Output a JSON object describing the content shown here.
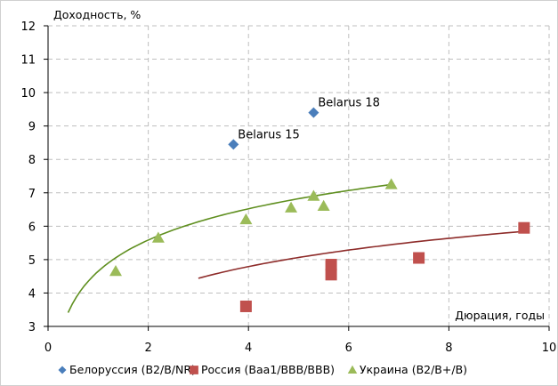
{
  "chart_data": {
    "type": "scatter",
    "ylabel": "Доходность, %",
    "xlabel": "Дюрация, годы",
    "xlim": [
      0,
      10
    ],
    "ylim": [
      3,
      12
    ],
    "x_ticks": [
      "0",
      "2",
      "4",
      "6",
      "8",
      "10"
    ],
    "y_ticks": [
      "3",
      "4",
      "5",
      "6",
      "7",
      "8",
      "9",
      "10",
      "11",
      "12"
    ],
    "grid": true,
    "legend_position": "bottom",
    "series": [
      {
        "name": "Белоруссия (B2/B/NR)",
        "marker": "diamond",
        "color": "#4a7ebb",
        "points": [
          {
            "x": 3.7,
            "y": 8.45
          },
          {
            "x": 5.3,
            "y": 9.4
          }
        ]
      },
      {
        "name": "Россия (Baa1/BBB/BBB)",
        "marker": "square",
        "color": "#c0504d",
        "trendline": {
          "a": 3.1,
          "b": 1.22,
          "x0": 3.0,
          "x1": 9.5
        },
        "points": [
          {
            "x": 3.95,
            "y": 3.6
          },
          {
            "x": 5.65,
            "y": 4.55
          },
          {
            "x": 5.65,
            "y": 4.85
          },
          {
            "x": 7.4,
            "y": 5.05
          },
          {
            "x": 9.5,
            "y": 5.95
          }
        ]
      },
      {
        "name": "Украина (B2/B+/B)",
        "marker": "triangle",
        "color": "#9bbb59",
        "trendline": {
          "a": 4.65,
          "b": 1.35,
          "x0": 0.4,
          "x1": 6.9
        },
        "points": [
          {
            "x": 1.35,
            "y": 4.65
          },
          {
            "x": 2.2,
            "y": 5.65
          },
          {
            "x": 3.95,
            "y": 6.2
          },
          {
            "x": 4.85,
            "y": 6.55
          },
          {
            "x": 5.3,
            "y": 6.9
          },
          {
            "x": 5.5,
            "y": 6.6
          },
          {
            "x": 6.85,
            "y": 7.25
          }
        ]
      }
    ],
    "annotations": [
      {
        "text": "Belarus 15",
        "x": 3.7,
        "y": 8.45
      },
      {
        "text": "Belarus 18",
        "x": 5.3,
        "y": 9.4
      }
    ],
    "trendline_colors": {
      "Россия (Baa1/BBB/BBB)": "#8e2c2a",
      "Украина (B2/B+/B)": "#5f8f1f"
    }
  }
}
